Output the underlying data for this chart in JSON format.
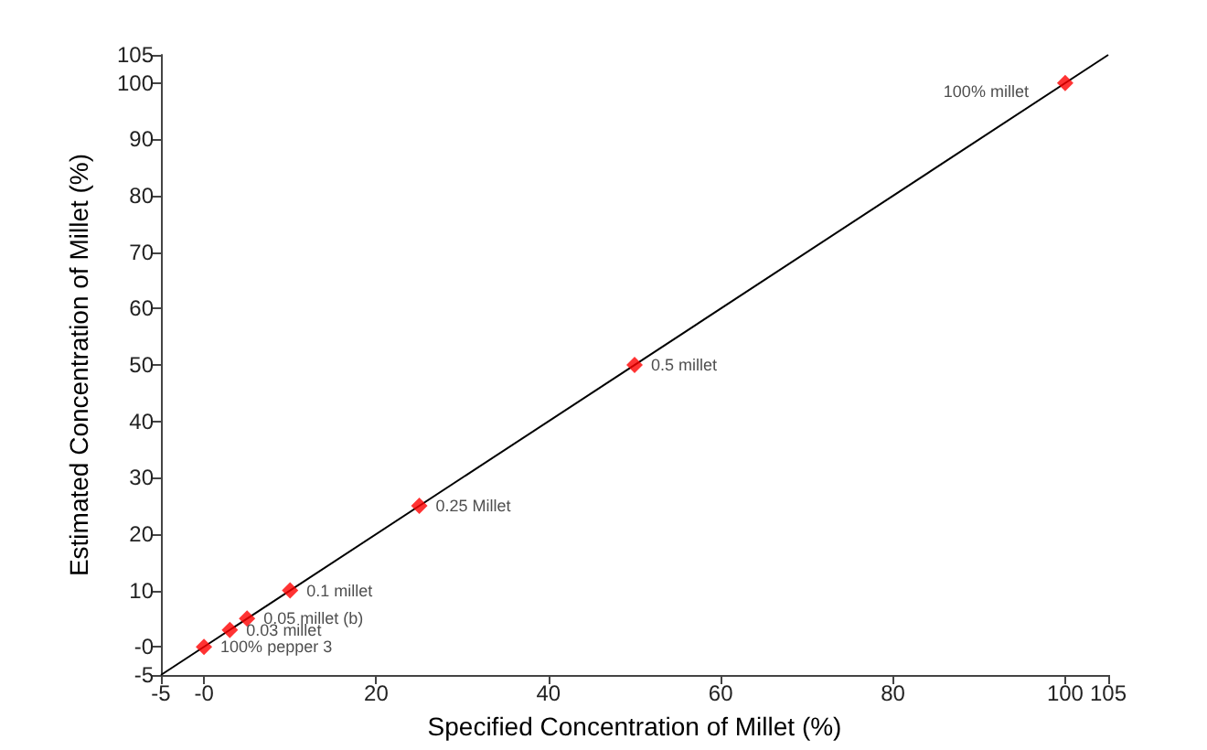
{
  "chart_data": {
    "type": "scatter",
    "xlabel": "Specified Concentration of Millet (%)",
    "ylabel": "Estimated Concentration of Millet (%)",
    "xlim": [
      -5,
      105
    ],
    "ylim": [
      -5,
      105
    ],
    "xticks": [
      -5,
      {
        "value": 0,
        "label": "-0"
      },
      20,
      40,
      60,
      80,
      100,
      105
    ],
    "yticks": [
      -5,
      {
        "value": 0,
        "label": "-0"
      },
      10,
      20,
      30,
      40,
      50,
      60,
      70,
      80,
      90,
      100,
      105
    ],
    "grid": false,
    "marker": "diamond",
    "annotations": [
      {
        "text": "100% pepper 3",
        "x": 0,
        "y": 0
      },
      {
        "text": "0.03 millet",
        "x": 3,
        "y": 3
      },
      {
        "text": "0.05 millet (b)",
        "x": 5,
        "y": 5
      },
      {
        "text": "0.1 millet",
        "x": 10,
        "y": 10
      },
      {
        "text": "0.25 Millet",
        "x": 25,
        "y": 25
      },
      {
        "text": "0.5 millet",
        "x": 50,
        "y": 50
      },
      {
        "text": "100% millet",
        "x": 100,
        "y": 100
      }
    ],
    "series": [
      {
        "color": "#ff0000",
        "x": [
          0,
          3,
          5,
          10,
          25,
          50,
          100
        ],
        "values": [
          0,
          3,
          5,
          10,
          25,
          50,
          100
        ]
      },
      {
        "type": "line",
        "color": "#000000",
        "marker": "none",
        "line_style": "solid",
        "x": [
          -5,
          105
        ],
        "values": [
          -5,
          105
        ]
      }
    ]
  }
}
